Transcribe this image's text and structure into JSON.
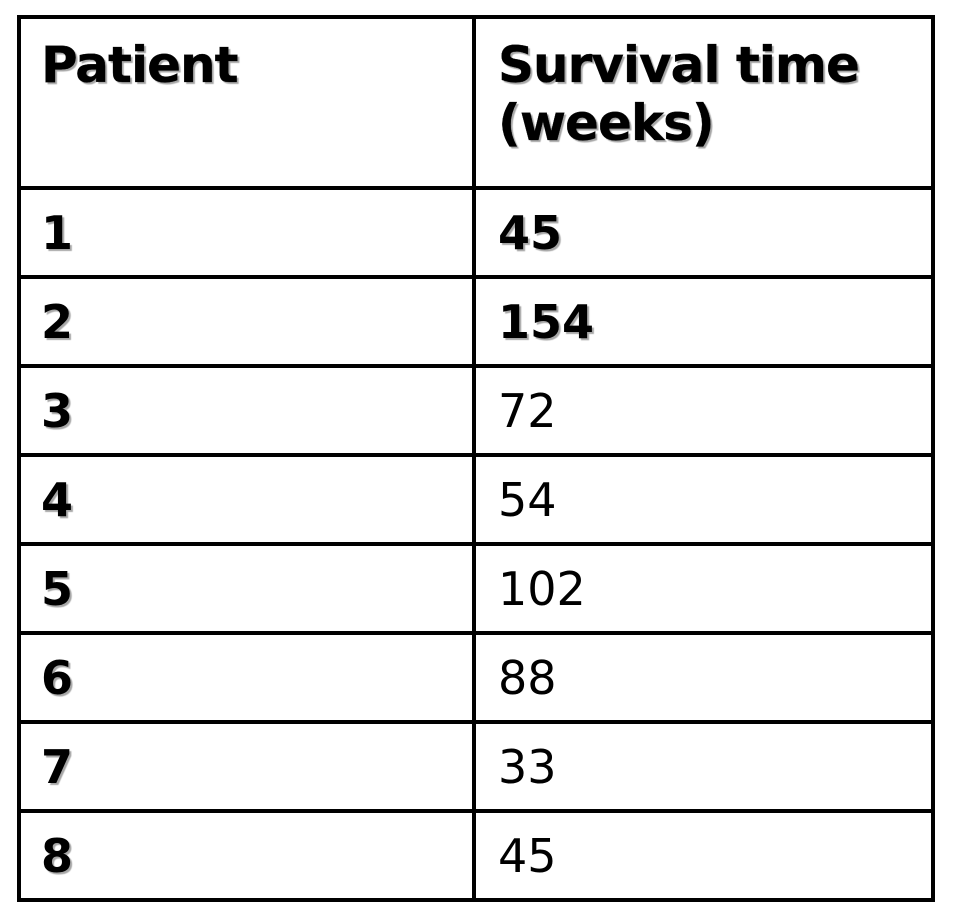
{
  "table": {
    "headers": {
      "patient": "Patient",
      "survival_time": "Survival time (weeks)"
    },
    "rows": [
      {
        "patient": "1",
        "survival_time": "45",
        "emphasized": true
      },
      {
        "patient": "2",
        "survival_time": "154",
        "emphasized": true
      },
      {
        "patient": "3",
        "survival_time": "72",
        "emphasized": false
      },
      {
        "patient": "4",
        "survival_time": "54",
        "emphasized": false
      },
      {
        "patient": "5",
        "survival_time": "102",
        "emphasized": false
      },
      {
        "patient": "6",
        "survival_time": "88",
        "emphasized": false
      },
      {
        "patient": "7",
        "survival_time": "33",
        "emphasized": false
      },
      {
        "patient": "8",
        "survival_time": "45",
        "emphasized": false
      }
    ]
  }
}
